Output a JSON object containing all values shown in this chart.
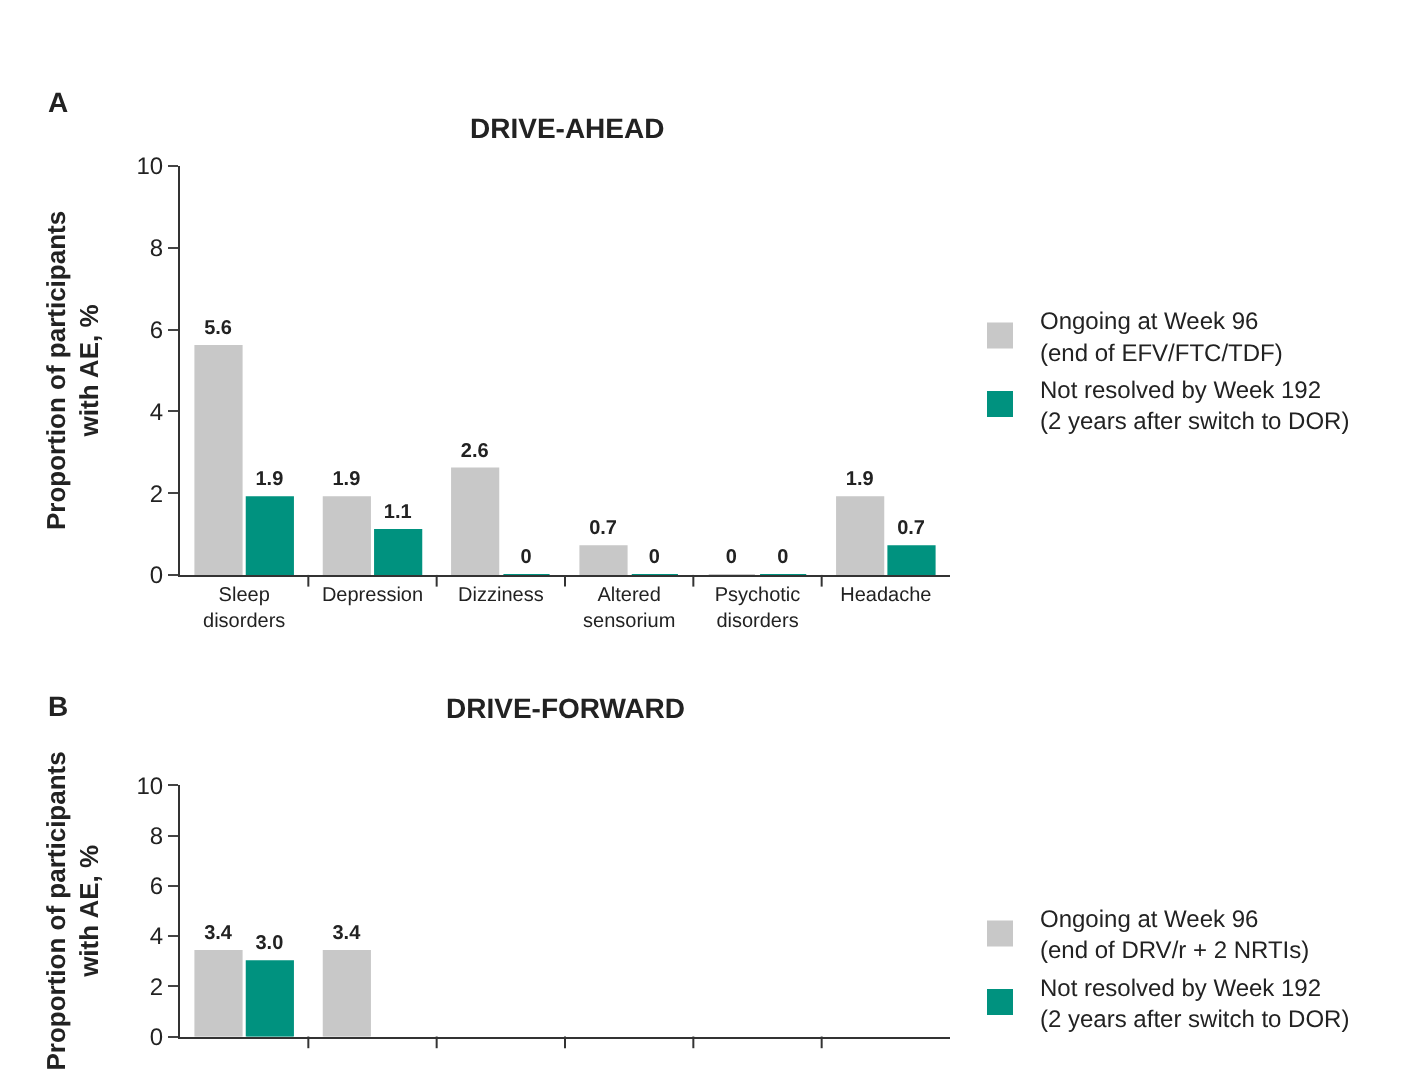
{
  "chart_data": [
    {
      "type": "bar",
      "title": "DRIVE-AHEAD",
      "ylabel": "Proportion of participants\nwith AE, %",
      "annotations": [
        "A"
      ],
      "categories": [
        "Sleep\ndisorders",
        "Depression",
        "Dizziness",
        "Altered\nsensorium",
        "Psychotic\ndisorders",
        "Headache"
      ],
      "series": [
        {
          "name": "Ongoing at Week 96\n(end of EFV/FTC/TDF)",
          "color": "#c8c8c8",
          "values": [
            5.6,
            1.9,
            2.6,
            0.7,
            0,
            1.9
          ]
        },
        {
          "name": "Not resolved by Week 192\n(2 years after switch to DOR)",
          "color": "#00927f",
          "values": [
            1.9,
            1.1,
            0,
            0,
            0,
            0.7
          ]
        }
      ],
      "ylim": [
        0,
        10
      ],
      "yticks": [
        0,
        2,
        4,
        6,
        8,
        10
      ],
      "data_labels": true,
      "legend": "right"
    },
    {
      "type": "bar",
      "title": "DRIVE-FORWARD",
      "ylabel": "Proportion of participants\nwith AE, %",
      "annotations": [
        "B"
      ],
      "categories": [
        null,
        null,
        null,
        null,
        null,
        null
      ],
      "series": [
        {
          "name": "Ongoing at Week 96\n(end of DRV/r + 2 NRTIs)",
          "color": "#c8c8c8",
          "values": [
            3.4,
            3.4,
            null,
            null,
            null,
            null
          ],
          "value_labels": [
            "3.4",
            "3.4",
            null,
            null,
            null,
            null
          ]
        },
        {
          "name": "Not resolved by Week 192\n(2 years after switch to DOR)",
          "color": "#00927f",
          "values": [
            3.0,
            null,
            null,
            null,
            null,
            null
          ],
          "value_labels": [
            "3.0",
            null,
            null,
            null,
            null,
            null
          ]
        }
      ],
      "ylim": [
        0,
        10
      ],
      "yticks": [
        0,
        2,
        4,
        6,
        8,
        10
      ],
      "tick_labels": "y",
      "legend": "right"
    }
  ]
}
